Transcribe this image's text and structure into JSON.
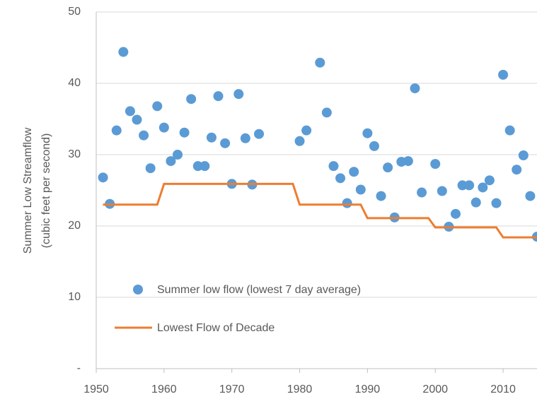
{
  "chart_data": {
    "type": "scatter",
    "ylabel": [
      "Summer Low Streamflow",
      "(cubic feet per second)"
    ],
    "xlim": [
      1950,
      2015
    ],
    "xticks": [
      1950,
      1960,
      1970,
      1980,
      1990,
      2000,
      2010
    ],
    "ylim": [
      0,
      50
    ],
    "yticks": [
      {
        "value": 0,
        "label": "-"
      },
      10,
      20,
      30,
      40,
      50
    ],
    "grid": true,
    "legend": "lower left",
    "series": [
      {
        "name": "Summer low flow (lowest 7 day average)",
        "type": "scatter",
        "color": "#5b9bd5",
        "x": [
          1951,
          1952,
          1953,
          1954,
          1955,
          1956,
          1957,
          1958,
          1959,
          1960,
          1961,
          1962,
          1963,
          1964,
          1965,
          1966,
          1967,
          1968,
          1969,
          1970,
          1971,
          1972,
          1973,
          1974,
          1980,
          1981,
          1983,
          1984,
          1985,
          1986,
          1987,
          1988,
          1989,
          1990,
          1991,
          1992,
          1993,
          1994,
          1995,
          1996,
          1997,
          1998,
          2000,
          2001,
          2002,
          2003,
          2004,
          2005,
          2006,
          2007,
          2008,
          2009,
          2010,
          2011,
          2012,
          2013,
          2014,
          2015
        ],
        "values": [
          26.8,
          23.1,
          33.4,
          44.4,
          36.1,
          34.9,
          32.7,
          28.1,
          36.8,
          33.8,
          29.1,
          30.0,
          33.1,
          37.8,
          28.4,
          28.4,
          32.4,
          38.2,
          31.6,
          25.9,
          38.5,
          32.3,
          25.8,
          32.9,
          31.9,
          33.4,
          42.9,
          35.9,
          28.4,
          26.7,
          23.2,
          27.6,
          25.1,
          33.0,
          31.2,
          24.2,
          28.2,
          21.2,
          29.0,
          29.1,
          39.3,
          24.7,
          28.7,
          24.9,
          19.9,
          21.7,
          25.7,
          25.7,
          23.3,
          25.4,
          26.4,
          23.2,
          41.2,
          33.4,
          27.9,
          29.9,
          24.2,
          18.5
        ]
      },
      {
        "name": "Lowest Flow of Decade",
        "type": "line",
        "color": "#ed7d31",
        "x": [
          1951,
          1959,
          1960,
          1979,
          1980,
          1989,
          1990,
          1999,
          2000,
          2009,
          2010,
          2015
        ],
        "values": [
          23.0,
          23.0,
          25.9,
          25.9,
          23.0,
          23.0,
          21.1,
          21.1,
          19.8,
          19.8,
          18.4,
          18.4
        ]
      }
    ]
  }
}
